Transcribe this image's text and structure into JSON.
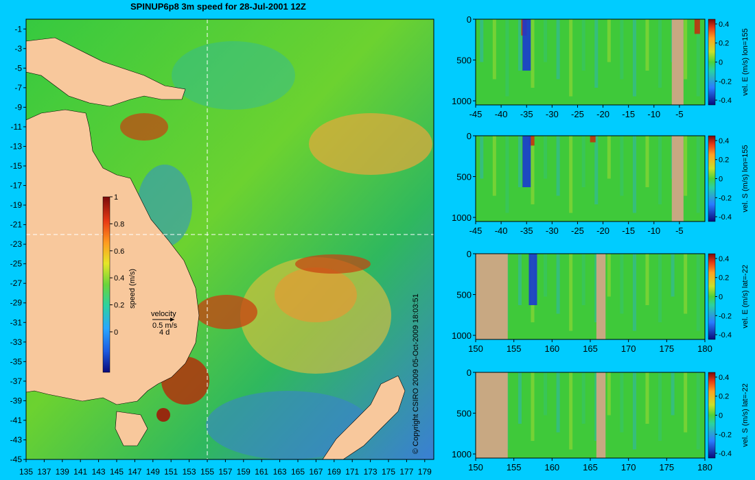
{
  "title": "SPINUP6p8 3m speed for 28-Jul-2001 12Z",
  "copyright": "© Copyright CSIRO 2009   05-Oct-2009 18:03:51",
  "colors": {
    "background": "#00ccff",
    "land": "#f8c89c",
    "section_land": "#c8a882",
    "dashed_lines": "#ffffff"
  },
  "chart_data": [
    {
      "type": "heatmap",
      "name": "map",
      "x_ticks": [
        "135",
        "137",
        "139",
        "141",
        "143",
        "145",
        "147",
        "149",
        "151",
        "153",
        "155",
        "157",
        "159",
        "161",
        "163",
        "165",
        "167",
        "169",
        "171",
        "173",
        "175",
        "177",
        "179"
      ],
      "y_ticks": [
        "-1",
        "-3",
        "-5",
        "-7",
        "-9",
        "-11",
        "-13",
        "-15",
        "-17",
        "-19",
        "-21",
        "-23",
        "-25",
        "-27",
        "-29",
        "-31",
        "-33",
        "-35",
        "-37",
        "-39",
        "-41",
        "-43",
        "-45"
      ],
      "xlim": [
        135,
        180
      ],
      "ylim": [
        -45,
        0
      ],
      "section_lon": 155,
      "section_lat": -22,
      "colorbar": {
        "label": "speed (m/s)",
        "ticks": [
          "0",
          "0.2",
          "0.4",
          "0.6",
          "0.8",
          "1"
        ],
        "range": [
          -0.3,
          1
        ]
      },
      "legend": {
        "title": "velocity",
        "speed": "0.5 m/s",
        "time": "4 d"
      }
    },
    {
      "type": "heatmap",
      "name": "section-1",
      "x_ticks": [
        "-45",
        "-40",
        "-35",
        "-30",
        "-25",
        "-20",
        "-15",
        "-10",
        "-5"
      ],
      "y_ticks": [
        "0",
        "500",
        "1000"
      ],
      "xlim": [
        -45,
        0
      ],
      "ylim": [
        1050,
        0
      ],
      "colorbar": {
        "label": "vel. E (m/s) lon=155",
        "ticks": [
          "0.4",
          "0.2",
          "0",
          "-0.2",
          "-0.4"
        ],
        "range": [
          -0.45,
          0.45
        ]
      }
    },
    {
      "type": "heatmap",
      "name": "section-2",
      "x_ticks": [
        "-45",
        "-40",
        "-35",
        "-30",
        "-25",
        "-20",
        "-15",
        "-10",
        "-5"
      ],
      "y_ticks": [
        "0",
        "500",
        "1000"
      ],
      "xlim": [
        -45,
        0
      ],
      "ylim": [
        1050,
        0
      ],
      "colorbar": {
        "label": "vel. S (m/s) lon=155",
        "ticks": [
          "0.4",
          "0.2",
          "0",
          "-0.2",
          "-0.4"
        ],
        "range": [
          -0.45,
          0.45
        ]
      }
    },
    {
      "type": "heatmap",
      "name": "section-3",
      "x_ticks": [
        "150",
        "155",
        "160",
        "165",
        "170",
        "175",
        "180"
      ],
      "y_ticks": [
        "0",
        "500",
        "1000"
      ],
      "xlim": [
        150,
        180
      ],
      "ylim": [
        1050,
        0
      ],
      "colorbar": {
        "label": "vel. E (m/s) lat=-22",
        "ticks": [
          "0.4",
          "0.2",
          "0",
          "-0.2",
          "-0.4"
        ],
        "range": [
          -0.45,
          0.45
        ]
      }
    },
    {
      "type": "heatmap",
      "name": "section-4",
      "x_ticks": [
        "150",
        "155",
        "160",
        "165",
        "170",
        "175",
        "180"
      ],
      "y_ticks": [
        "0",
        "500",
        "1000"
      ],
      "xlim": [
        150,
        180
      ],
      "ylim": [
        1050,
        0
      ],
      "colorbar": {
        "label": "vel. S (m/s) lat=-22",
        "ticks": [
          "0.4",
          "0.2",
          "0",
          "-0.2",
          "-0.4"
        ],
        "range": [
          -0.45,
          0.45
        ]
      }
    }
  ]
}
